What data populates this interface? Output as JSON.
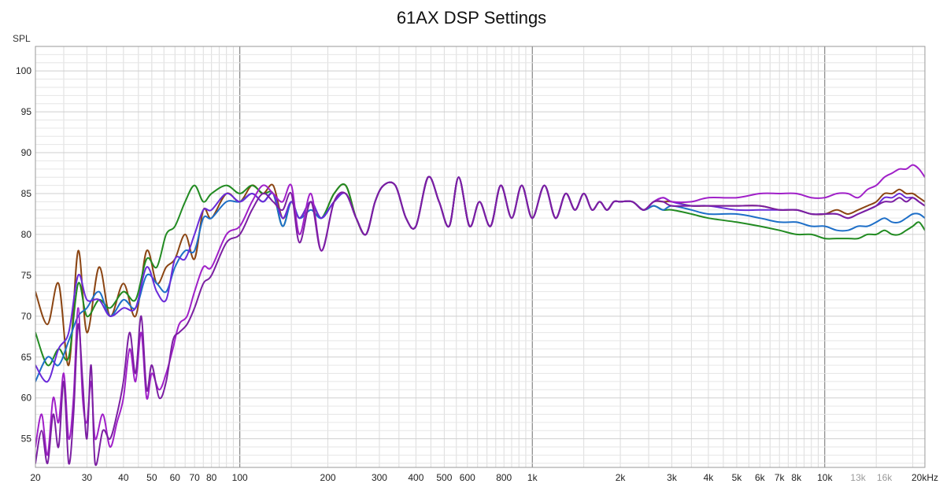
{
  "chart_data": {
    "type": "line",
    "title": "61AX DSP Settings",
    "ylabel": "SPL",
    "xlabel": "",
    "xscale": "log",
    "xlim": [
      20,
      22000
    ],
    "ylim": [
      51.5,
      103
    ],
    "grid": true,
    "y_ticks": [
      {
        "value": 100,
        "label": "100"
      },
      {
        "value": 95,
        "label": "95"
      },
      {
        "value": 90,
        "label": "90"
      },
      {
        "value": 85,
        "label": "85"
      },
      {
        "value": 80,
        "label": "80"
      },
      {
        "value": 75,
        "label": "75"
      },
      {
        "value": 70,
        "label": "70"
      },
      {
        "value": 65,
        "label": "65"
      },
      {
        "value": 60,
        "label": "60"
      },
      {
        "value": 55,
        "label": "55"
      }
    ],
    "x_ticks": [
      {
        "value": 20,
        "label": "20"
      },
      {
        "value": 30,
        "label": "30"
      },
      {
        "value": 40,
        "label": "40"
      },
      {
        "value": 50,
        "label": "50"
      },
      {
        "value": 60,
        "label": "60"
      },
      {
        "value": 70,
        "label": "70"
      },
      {
        "value": 80,
        "label": "80"
      },
      {
        "value": 100,
        "label": "100"
      },
      {
        "value": 200,
        "label": "200"
      },
      {
        "value": 300,
        "label": "300"
      },
      {
        "value": 400,
        "label": "400"
      },
      {
        "value": 500,
        "label": "500"
      },
      {
        "value": 600,
        "label": "600"
      },
      {
        "value": 800,
        "label": "800"
      },
      {
        "value": 1000,
        "label": "1k"
      },
      {
        "value": 2000,
        "label": "2k"
      },
      {
        "value": 3000,
        "label": "3k"
      },
      {
        "value": 4000,
        "label": "4k"
      },
      {
        "value": 5000,
        "label": "5k"
      },
      {
        "value": 6000,
        "label": "6k"
      },
      {
        "value": 7000,
        "label": "7k"
      },
      {
        "value": 8000,
        "label": "8k"
      },
      {
        "value": 10000,
        "label": "10k"
      },
      {
        "value": 13000,
        "label": "13k",
        "faint": true
      },
      {
        "value": 16000,
        "label": "16k",
        "faint": true
      },
      {
        "value": 20000,
        "label": "20kHz"
      }
    ],
    "series": [
      {
        "color": "#8B4513",
        "x": [
          20,
          22,
          24,
          26,
          28,
          30,
          33,
          36,
          40,
          44,
          48,
          52,
          56,
          60,
          65,
          70,
          75,
          80,
          90,
          100,
          110,
          120,
          130,
          140,
          150,
          160,
          175,
          190,
          210,
          230,
          250,
          270,
          290,
          310,
          340,
          370,
          400,
          440,
          480,
          520,
          560,
          610,
          660,
          720,
          780,
          850,
          920,
          1000,
          1100,
          1200,
          1300,
          1400,
          1500,
          1600,
          1700,
          1800,
          1900,
          2000,
          2200,
          2400,
          2600,
          2800,
          3000,
          3500,
          4000,
          5000,
          6000,
          7000,
          8000,
          9000,
          10000,
          11000,
          12000,
          13000,
          14000,
          15000,
          16000,
          17000,
          18000,
          19000,
          20000,
          21000,
          22000
        ],
        "y": [
          73,
          69,
          74,
          64,
          78,
          68,
          76,
          70,
          74,
          70,
          78,
          74,
          76,
          77,
          80,
          77,
          83,
          82,
          85,
          84,
          86,
          85,
          86,
          82,
          84,
          82,
          84,
          82,
          85,
          86,
          82,
          80,
          84,
          86,
          86,
          82,
          81,
          87,
          84,
          81,
          87,
          81,
          84,
          81,
          86,
          82,
          86,
          82,
          86,
          82,
          85,
          83,
          85,
          83,
          84,
          83,
          84,
          84,
          84,
          83,
          84,
          84,
          84,
          83.5,
          83.5,
          83.5,
          83.5,
          83,
          83,
          82.5,
          82.5,
          83,
          82.5,
          83,
          83.5,
          84,
          85,
          85,
          85.5,
          85,
          85,
          84.5,
          84
        ]
      },
      {
        "color": "#228B22",
        "x": [
          20,
          22,
          24,
          26,
          28,
          30,
          33,
          36,
          40,
          44,
          48,
          52,
          56,
          60,
          65,
          70,
          75,
          80,
          90,
          100,
          110,
          120,
          130,
          140,
          150,
          160,
          175,
          190,
          210,
          230,
          250,
          270,
          290,
          310,
          340,
          370,
          400,
          440,
          480,
          520,
          560,
          610,
          660,
          720,
          780,
          850,
          920,
          1000,
          1100,
          1200,
          1300,
          1400,
          1500,
          1600,
          1700,
          1800,
          1900,
          2000,
          2200,
          2400,
          2600,
          2800,
          3000,
          3500,
          4000,
          5000,
          6000,
          7000,
          8000,
          9000,
          10000,
          11000,
          12000,
          13000,
          14000,
          15000,
          16000,
          17000,
          18000,
          19000,
          20000,
          21000,
          22000
        ],
        "y": [
          68,
          64,
          66,
          65,
          74,
          70,
          72,
          71,
          73,
          72,
          77,
          76,
          80,
          81,
          84,
          86,
          84,
          85,
          86,
          85,
          86,
          85,
          85,
          81,
          84,
          82,
          84,
          82,
          85,
          86,
          82,
          80,
          84,
          86,
          86,
          82,
          81,
          87,
          84,
          81,
          87,
          81,
          84,
          81,
          86,
          82,
          86,
          82,
          86,
          82,
          85,
          83,
          85,
          83,
          84,
          83,
          84,
          84,
          84,
          83,
          83.5,
          83,
          83,
          82.5,
          82,
          81.5,
          81,
          80.5,
          80,
          80,
          79.5,
          79.5,
          79.5,
          79.5,
          80,
          80,
          80.5,
          80,
          80,
          80.5,
          81,
          81.5,
          80.5
        ]
      },
      {
        "color": "#1E6FC8",
        "x": [
          20,
          22,
          24,
          26,
          28,
          30,
          33,
          36,
          40,
          44,
          48,
          52,
          56,
          60,
          65,
          70,
          75,
          80,
          90,
          100,
          110,
          120,
          130,
          140,
          150,
          160,
          175,
          190,
          210,
          230,
          250,
          270,
          290,
          310,
          340,
          370,
          400,
          440,
          480,
          520,
          560,
          610,
          660,
          720,
          780,
          850,
          920,
          1000,
          1100,
          1200,
          1300,
          1400,
          1500,
          1600,
          1700,
          1800,
          1900,
          2000,
          2200,
          2400,
          2600,
          2800,
          3000,
          3500,
          4000,
          5000,
          6000,
          7000,
          8000,
          9000,
          10000,
          11000,
          12000,
          13000,
          14000,
          15000,
          16000,
          17000,
          18000,
          19000,
          20000,
          21000,
          22000
        ],
        "y": [
          62,
          65,
          64,
          67,
          70,
          71,
          73,
          70,
          72,
          71,
          75,
          74,
          73,
          76,
          78,
          78,
          82,
          82,
          84,
          84,
          85,
          84,
          85,
          81,
          84,
          82,
          83,
          82,
          84,
          85,
          82,
          80,
          84,
          86,
          86,
          82,
          81,
          87,
          84,
          81,
          87,
          81,
          84,
          81,
          86,
          82,
          86,
          82,
          86,
          82,
          85,
          83,
          85,
          83,
          84,
          83,
          84,
          84,
          84,
          83,
          83.5,
          83,
          83.5,
          83,
          82.5,
          82.5,
          82,
          81.5,
          81.5,
          81,
          81,
          80.5,
          80.5,
          81,
          81,
          81.5,
          82,
          81.5,
          81.5,
          82,
          82.5,
          82.5,
          82
        ]
      },
      {
        "color": "#6A2BD9",
        "x": [
          20,
          22,
          24,
          26,
          28,
          30,
          33,
          36,
          40,
          44,
          48,
          52,
          56,
          60,
          65,
          70,
          75,
          80,
          90,
          100,
          110,
          120,
          130,
          140,
          150,
          160,
          175,
          190,
          210,
          230,
          250,
          270,
          290,
          310,
          340,
          370,
          400,
          440,
          480,
          520,
          560,
          610,
          660,
          720,
          780,
          850,
          920,
          1000,
          1100,
          1200,
          1300,
          1400,
          1500,
          1600,
          1700,
          1800,
          1900,
          2000,
          2200,
          2400,
          2600,
          2800,
          3000,
          3500,
          4000,
          5000,
          6000,
          7000,
          8000,
          9000,
          10000,
          11000,
          12000,
          13000,
          14000,
          15000,
          16000,
          17000,
          18000,
          19000,
          20000,
          21000,
          22000
        ],
        "y": [
          64,
          62,
          66,
          68,
          75,
          72,
          72,
          70,
          71,
          71,
          76,
          73,
          72,
          77,
          77,
          80,
          83,
          83,
          85,
          84,
          85,
          84,
          85,
          82,
          84,
          82,
          84,
          82,
          84,
          85,
          82,
          80,
          84,
          86,
          86,
          82,
          81,
          87,
          84,
          81,
          87,
          81,
          84,
          81,
          86,
          82,
          86,
          82,
          86,
          82,
          85,
          83,
          85,
          83,
          84,
          83,
          84,
          84,
          84,
          83,
          84,
          84.5,
          84,
          83.5,
          83.5,
          83,
          83,
          83,
          83,
          82.5,
          82.5,
          82.5,
          82,
          82.5,
          83,
          83.5,
          84.5,
          84.5,
          85,
          84.5,
          84.5,
          84,
          83.5
        ]
      },
      {
        "color": "#A020C8",
        "x": [
          20,
          21,
          22,
          23,
          24,
          25,
          26,
          27,
          28,
          29,
          30,
          31,
          32,
          34,
          36,
          38,
          40,
          42,
          44,
          46,
          48,
          50,
          53,
          56,
          59,
          62,
          66,
          70,
          75,
          80,
          90,
          100,
          110,
          120,
          130,
          140,
          150,
          160,
          175,
          190,
          210,
          230,
          250,
          270,
          290,
          310,
          340,
          370,
          400,
          440,
          480,
          520,
          560,
          610,
          660,
          720,
          780,
          850,
          920,
          1000,
          1100,
          1200,
          1300,
          1400,
          1500,
          1600,
          1700,
          1800,
          1900,
          2000,
          2200,
          2400,
          2600,
          2800,
          3000,
          3500,
          4000,
          5000,
          6000,
          7000,
          8000,
          9000,
          10000,
          11000,
          12000,
          13000,
          14000,
          15000,
          16000,
          17000,
          18000,
          19000,
          20000,
          21000,
          22000
        ],
        "y": [
          54,
          58,
          53,
          60,
          57,
          63,
          55,
          60,
          71,
          60,
          57,
          62,
          55,
          58,
          54,
          57,
          60,
          66,
          62,
          68,
          60,
          63,
          61,
          63,
          66,
          69,
          70,
          73,
          76,
          76,
          80,
          81,
          84,
          86,
          85,
          84,
          86,
          80,
          85,
          78,
          84,
          85,
          82,
          80,
          84,
          86,
          86,
          82,
          81,
          87,
          84,
          81,
          87,
          81,
          84,
          81,
          86,
          82,
          86,
          82,
          86,
          82,
          85,
          83,
          85,
          83,
          84,
          83,
          84,
          84,
          84,
          83,
          84,
          84.5,
          84,
          84,
          84.5,
          84.5,
          85,
          85,
          85,
          84.5,
          84.5,
          85,
          85,
          84.5,
          85.5,
          86,
          87,
          87.5,
          88,
          88,
          88.5,
          88,
          87
        ]
      },
      {
        "color": "#7B1FA2",
        "x": [
          20,
          21,
          22,
          23,
          24,
          25,
          26,
          27,
          28,
          29,
          30,
          31,
          32,
          34,
          36,
          38,
          40,
          42,
          44,
          46,
          48,
          50,
          53,
          56,
          59,
          62,
          66,
          70,
          75,
          80,
          90,
          100,
          110,
          120,
          130,
          140,
          150,
          160,
          175,
          190,
          210,
          230,
          250,
          270,
          290,
          310,
          340,
          370,
          400,
          440,
          480,
          520,
          560,
          610,
          660,
          720,
          780,
          850,
          920,
          1000,
          1100,
          1200,
          1300,
          1400,
          1500,
          1600,
          1700,
          1800,
          1900,
          2000,
          2200,
          2400,
          2600,
          2800,
          3000,
          3500,
          4000,
          5000,
          6000,
          7000,
          8000,
          9000,
          10000,
          11000,
          12000,
          13000,
          14000,
          15000,
          16000,
          17000,
          18000,
          19000,
          20000,
          21000,
          22000
        ],
        "y": [
          52,
          56,
          52,
          58,
          54,
          62,
          52,
          58,
          69,
          62,
          55,
          64,
          52,
          56,
          55,
          58,
          62,
          68,
          63,
          70,
          61,
          64,
          60,
          62,
          67,
          68,
          69,
          71,
          74,
          75,
          79,
          80,
          83,
          85,
          84,
          83,
          85,
          79,
          84,
          78,
          84,
          85,
          82,
          80,
          84,
          86,
          86,
          82,
          81,
          87,
          84,
          81,
          87,
          81,
          84,
          81,
          86,
          82,
          86,
          82,
          86,
          82,
          85,
          83,
          85,
          83,
          84,
          83,
          84,
          84,
          84,
          83,
          84,
          84,
          83.5,
          83.5,
          83.5,
          83.5,
          83.5,
          83,
          83,
          82.5,
          82.5,
          82.5,
          82,
          82.5,
          83,
          83.5,
          84,
          84,
          84.5,
          84,
          84.5,
          84,
          83.5
        ]
      }
    ]
  }
}
